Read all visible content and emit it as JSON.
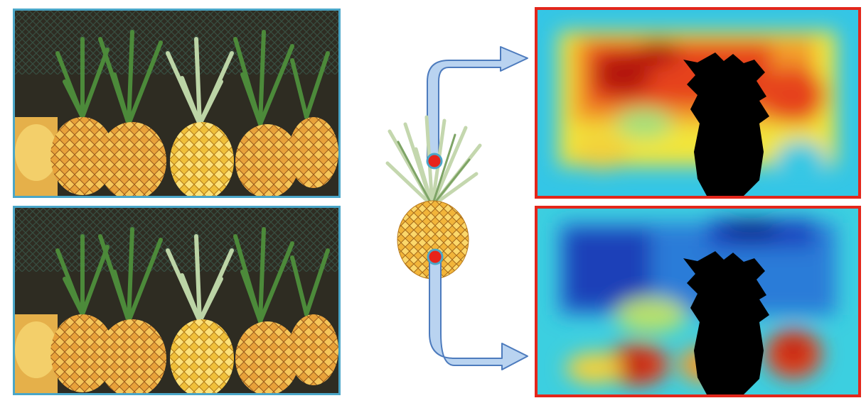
{
  "figure": {
    "photos": [
      {
        "name": "source-photo-top"
      },
      {
        "name": "source-photo-bottom"
      }
    ],
    "heatmaps": [
      {
        "name": "similarity-heatmap-top",
        "palette": "jet",
        "dominant": "warm"
      },
      {
        "name": "similarity-heatmap-bottom",
        "palette": "jet",
        "dominant": "cool"
      }
    ],
    "query": {
      "name": "pineapple-query-object",
      "markers": 2,
      "marker_color": "#e8231a"
    },
    "colors": {
      "photo_border": "#4aa6c8",
      "heat_border": "#e3261b",
      "arrow_fill": "#b9d3f0",
      "arrow_stroke": "#4d7bbd",
      "silhouette": "#000000"
    }
  }
}
